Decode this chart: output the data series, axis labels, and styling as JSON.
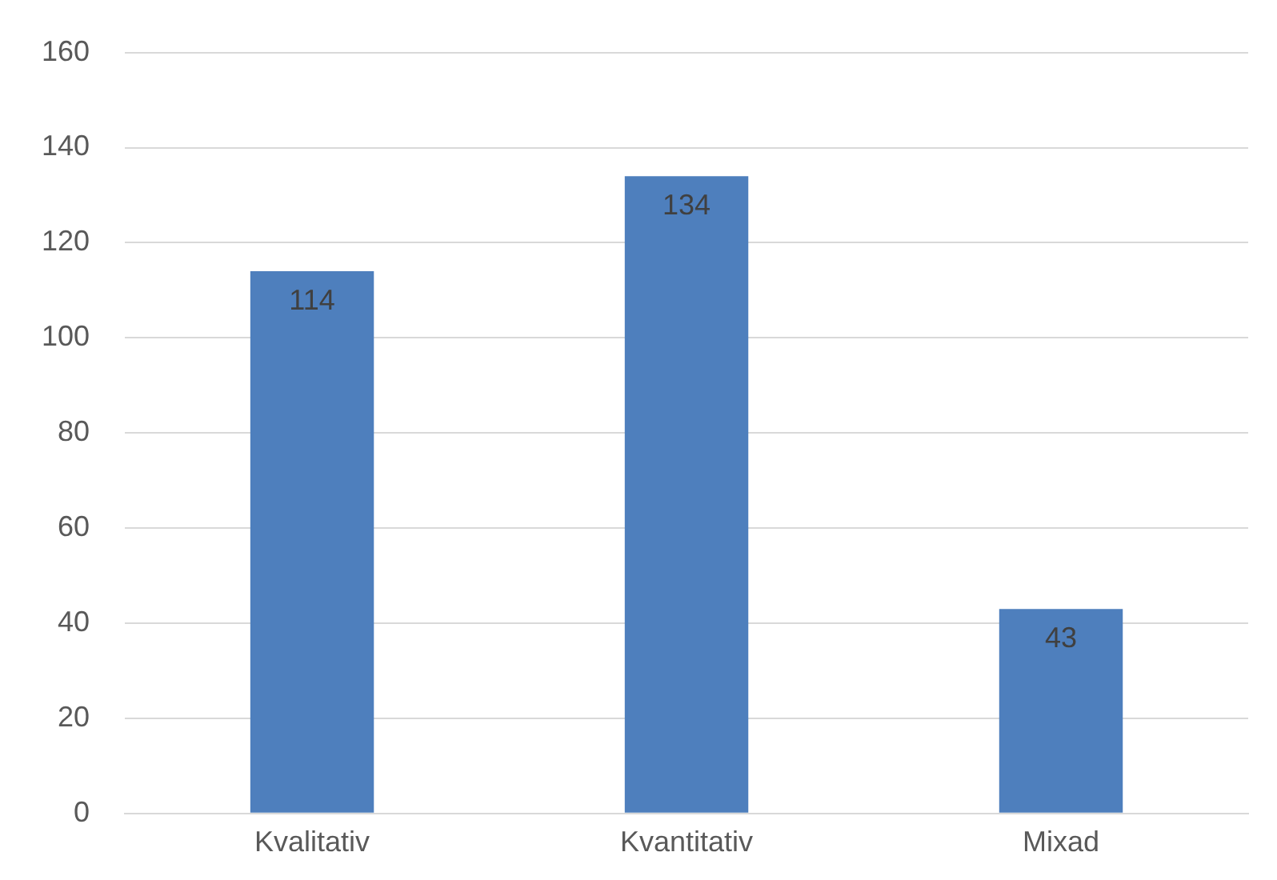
{
  "chart_data": {
    "type": "bar",
    "categories": [
      "Kvalitativ",
      "Kvantitativ",
      "Mixad"
    ],
    "values": [
      114,
      134,
      43
    ],
    "color": "#4e7fbd",
    "ylim": [
      0,
      160
    ],
    "yticks": [
      0,
      20,
      40,
      60,
      80,
      100,
      120,
      140,
      160
    ],
    "grid": "y",
    "data_labels": true
  }
}
